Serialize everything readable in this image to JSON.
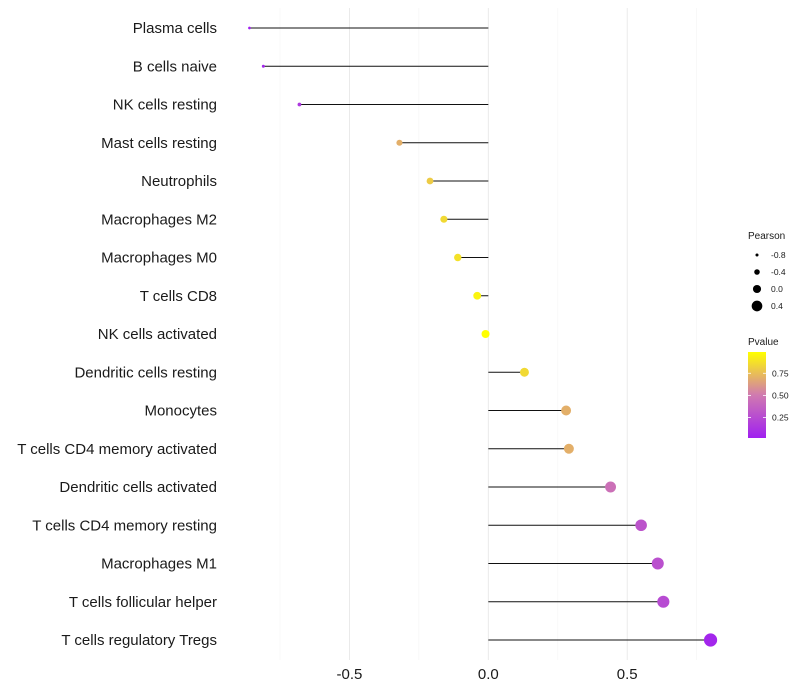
{
  "chart_data": {
    "type": "lollipop",
    "categories": [
      "Plasma cells",
      "B cells naive",
      "NK cells resting",
      "Mast cells resting",
      "Neutrophils",
      "Macrophages M2",
      "Macrophages M0",
      "T cells CD8",
      "NK cells activated",
      "Dendritic cells resting",
      "Monocytes",
      "T cells CD4 memory activated",
      "Dendritic cells activated",
      "T cells CD4 memory resting",
      "Macrophages M1",
      "T cells follicular helper",
      "T cells regulatory  Tregs"
    ],
    "values": [
      -0.86,
      -0.81,
      -0.68,
      -0.32,
      -0.21,
      -0.16,
      -0.11,
      -0.04,
      -0.01,
      0.13,
      0.28,
      0.29,
      0.44,
      0.55,
      0.61,
      0.63,
      0.8
    ],
    "pvalues": [
      0.02,
      0.05,
      0.15,
      0.7,
      0.8,
      0.85,
      0.88,
      0.95,
      0.99,
      0.85,
      0.7,
      0.7,
      0.45,
      0.3,
      0.28,
      0.25,
      0.05
    ],
    "x_ticks": [
      -0.5,
      0.0,
      0.5
    ],
    "x_tick_labels": [
      "-0.5",
      "0.0",
      "0.5"
    ],
    "xlim": [
      -0.93,
      0.87
    ],
    "xlabel": "",
    "ylabel": "",
    "legends": {
      "size": {
        "title": "Pearson",
        "values": [
          -0.8,
          -0.4,
          0.0,
          0.4
        ],
        "labels": [
          "-0.8",
          "-0.4",
          "0.0",
          "0.4"
        ]
      },
      "color": {
        "title": "Pvalue",
        "ticks": [
          0.75,
          0.5,
          0.25
        ],
        "tick_labels": [
          "0.75",
          "0.50",
          "0.25"
        ],
        "range": [
          0.02,
          0.99
        ],
        "low_color": "#a020f0",
        "mid_color": "#d07ab0",
        "high_color": "#ffff00"
      }
    },
    "grid": true,
    "legend_position": "right"
  }
}
